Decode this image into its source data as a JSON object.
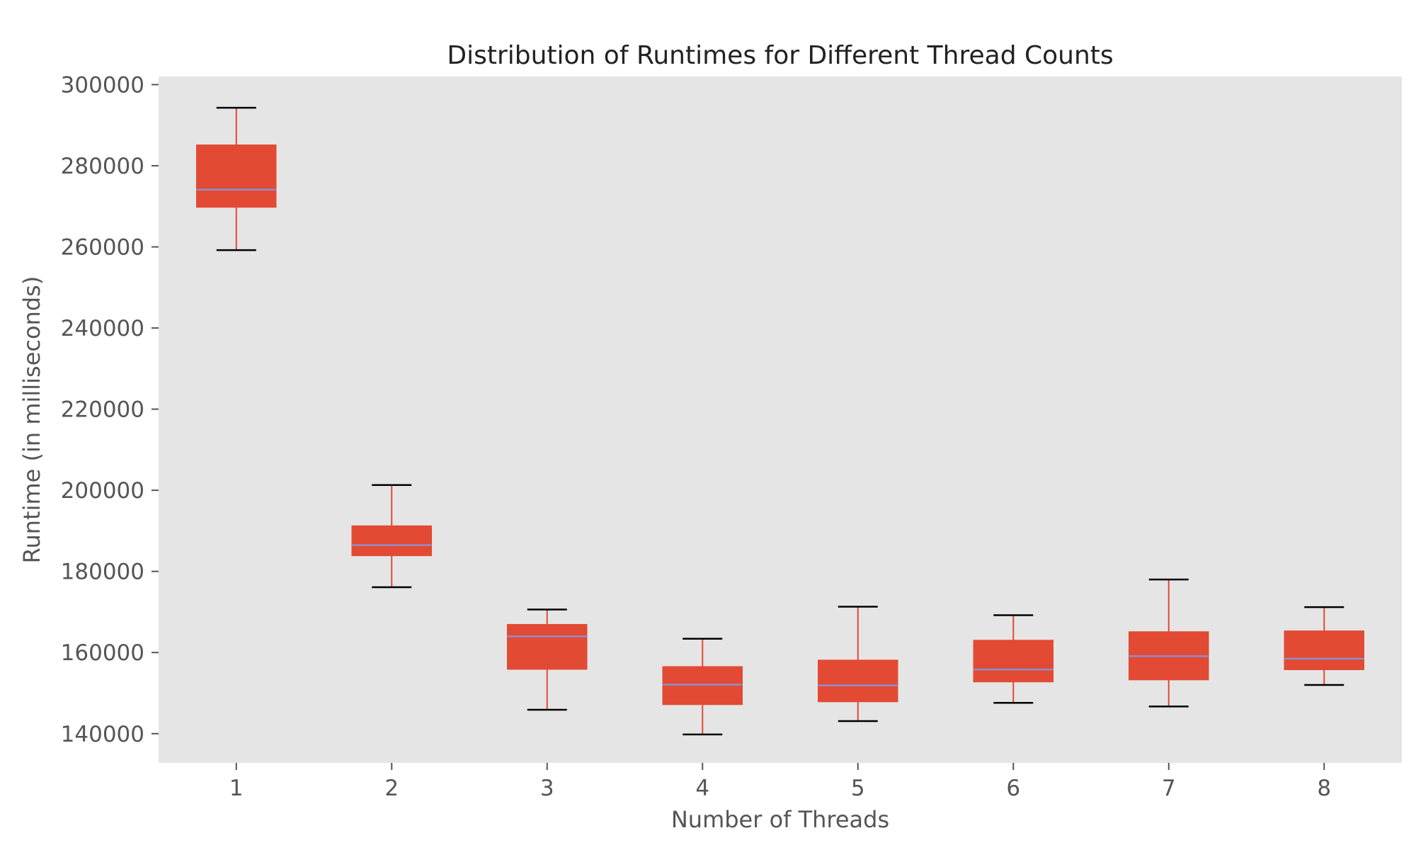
{
  "chart_data": {
    "type": "box",
    "title": "Distribution of Runtimes for Different Thread Counts",
    "xlabel": "Number of Threads",
    "ylabel": "Runtime (in milliseconds)",
    "ylim": [
      132800,
      302000
    ],
    "yticks": [
      140000,
      160000,
      180000,
      200000,
      220000,
      240000,
      260000,
      280000,
      300000
    ],
    "categories": [
      "1",
      "2",
      "3",
      "4",
      "5",
      "6",
      "7",
      "8"
    ],
    "boxes": [
      {
        "category": "1",
        "whislo": 259200,
        "q1": 269800,
        "med": 274100,
        "q3": 285100,
        "whishi": 294300
      },
      {
        "category": "2",
        "whislo": 176100,
        "q1": 183900,
        "med": 186500,
        "q3": 191200,
        "whishi": 201300
      },
      {
        "category": "3",
        "whislo": 145900,
        "q1": 155900,
        "med": 164000,
        "q3": 166900,
        "whishi": 170600
      },
      {
        "category": "4",
        "whislo": 139800,
        "q1": 147200,
        "med": 152100,
        "q3": 156500,
        "whishi": 163400
      },
      {
        "category": "5",
        "whislo": 143100,
        "q1": 147900,
        "med": 151900,
        "q3": 158100,
        "whishi": 171300
      },
      {
        "category": "6",
        "whislo": 147600,
        "q1": 152800,
        "med": 155800,
        "q3": 163000,
        "whishi": 169200
      },
      {
        "category": "7",
        "whislo": 146700,
        "q1": 153300,
        "med": 159100,
        "q3": 165100,
        "whishi": 178000
      },
      {
        "category": "8",
        "whislo": 152000,
        "q1": 155800,
        "med": 158500,
        "q3": 165300,
        "whishi": 171200
      }
    ],
    "grid": false,
    "colors": {
      "background": "#e5e5e5",
      "box_fill": "#e24a33",
      "median": "#8e8ecf",
      "whisker": "#e24a33",
      "cap": "#000000",
      "tick": "#555555",
      "text": "#555555",
      "title": "#222222"
    }
  }
}
